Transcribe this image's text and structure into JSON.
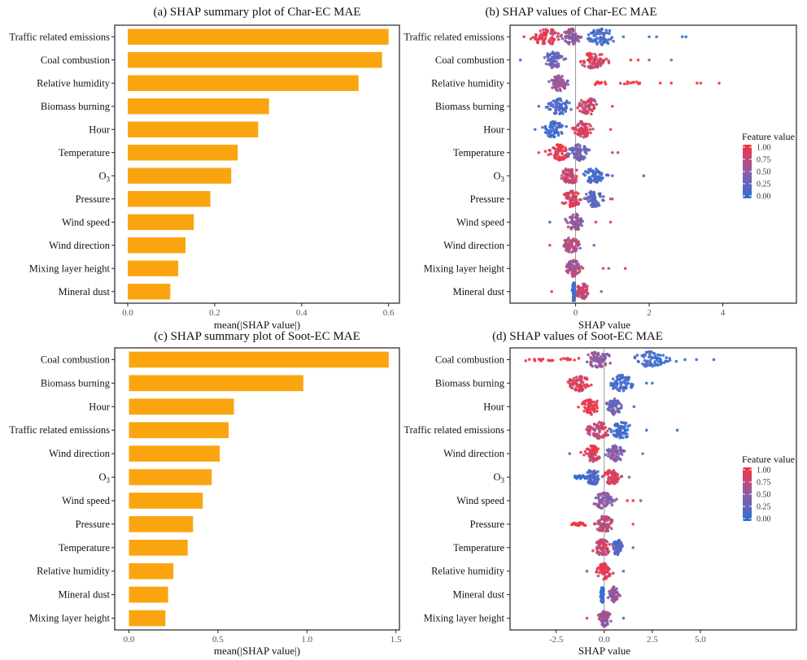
{
  "chart_data": [
    {
      "id": "a",
      "type": "bar",
      "orientation": "horizontal",
      "title": "(a) SHAP summary plot of Char-EC MAE",
      "xlabel": "mean(|SHAP value|)",
      "ylabel": "",
      "xlim": [
        -0.03,
        0.625
      ],
      "xticks": [
        0.0,
        0.2,
        0.4,
        0.6
      ],
      "xtick_labels": [
        "0.0",
        "0.2",
        "0.4",
        "0.6"
      ],
      "categories": [
        "Traffic related emissions",
        "Coal combustion",
        "Relative humidity",
        "Biomass burning",
        "Hour",
        "Temperature",
        "O3",
        "Pressure",
        "Wind speed",
        "Wind direction",
        "Mixing layer height",
        "Mineral dust"
      ],
      "values": [
        0.6,
        0.585,
        0.531,
        0.325,
        0.3,
        0.253,
        0.238,
        0.19,
        0.152,
        0.133,
        0.116,
        0.098
      ],
      "bar_color": "#FAA510",
      "grid": false
    },
    {
      "id": "b",
      "type": "scatter",
      "subtype": "beeswarm",
      "title": "(b) SHAP values of Char-EC MAE",
      "xlabel": "SHAP value",
      "xlim": [
        -1.78,
        6.0
      ],
      "xticks": [
        0,
        2,
        4
      ],
      "xtick_labels": [
        "0",
        "2",
        "4"
      ],
      "categories": [
        "Traffic related emissions",
        "Coal combustion",
        "Relative humidity",
        "Biomass burning",
        "Hour",
        "Temperature",
        "O3",
        "Pressure",
        "Wind speed",
        "Wind direction",
        "Mixing layer height",
        "Mineral dust"
      ],
      "distributions": [
        {
          "min": -1.4,
          "max": 3.0,
          "clusters": [
            {
              "center": -0.8,
              "spread": 0.5,
              "fv": 0.9
            },
            {
              "center": -0.1,
              "spread": 0.3,
              "fv": 0.5
            },
            {
              "center": 0.7,
              "spread": 0.45,
              "fv": 0.05
            }
          ],
          "outliers": [
            {
              "x": 2.0,
              "fv": 0.0
            },
            {
              "x": 2.2,
              "fv": 0.0
            },
            {
              "x": 2.9,
              "fv": 0.0
            },
            {
              "x": 3.0,
              "fv": 0.0
            },
            {
              "x": 1.3,
              "fv": 0.2
            },
            {
              "x": -1.4,
              "fv": 1.0
            }
          ]
        },
        {
          "min": -1.5,
          "max": 2.6,
          "clusters": [
            {
              "center": -0.6,
              "spread": 0.35,
              "fv": 0.3
            },
            {
              "center": 0.45,
              "spread": 0.45,
              "fv": 0.85
            }
          ],
          "outliers": [
            {
              "x": -1.5,
              "fv": 0.0
            },
            {
              "x": 1.5,
              "fv": 1.0
            },
            {
              "x": 1.7,
              "fv": 1.0
            },
            {
              "x": 2.0,
              "fv": 0.7
            },
            {
              "x": 2.6,
              "fv": 0.6
            }
          ]
        },
        {
          "min": -0.8,
          "max": 3.9,
          "clusters": [
            {
              "center": -0.45,
              "spread": 0.3,
              "fv": 0.55
            }
          ],
          "tail": {
            "from": 0.4,
            "to": 1.8,
            "fv": 1.0
          },
          "outliers": [
            {
              "x": 2.3,
              "fv": 1.0
            },
            {
              "x": 2.6,
              "fv": 1.0
            },
            {
              "x": 3.3,
              "fv": 1.0
            },
            {
              "x": 3.4,
              "fv": 1.0
            },
            {
              "x": 3.9,
              "fv": 1.0
            }
          ]
        },
        {
          "min": -1.1,
          "max": 1.0,
          "clusters": [
            {
              "center": -0.45,
              "spread": 0.35,
              "fv": 0.15
            },
            {
              "center": 0.35,
              "spread": 0.35,
              "fv": 0.8
            }
          ],
          "outliers": [
            {
              "x": -1.0,
              "fv": 0.0
            },
            {
              "x": 1.0,
              "fv": 1.0
            }
          ]
        },
        {
          "min": -1.1,
          "max": 1.0,
          "clusters": [
            {
              "center": -0.6,
              "spread": 0.35,
              "fv": 0.05
            },
            {
              "center": 0.2,
              "spread": 0.3,
              "fv": 0.85
            }
          ],
          "outliers": [
            {
              "x": -1.1,
              "fv": 0.0
            },
            {
              "x": 0.95,
              "fv": 1.0
            }
          ]
        },
        {
          "min": -1.0,
          "max": 1.2,
          "clusters": [
            {
              "center": -0.45,
              "spread": 0.3,
              "fv": 0.95
            },
            {
              "center": 0.1,
              "spread": 0.3,
              "fv": 0.35
            }
          ],
          "outliers": [
            {
              "x": -1.0,
              "fv": 1.0
            },
            {
              "x": 1.0,
              "fv": 0.8
            },
            {
              "x": 1.15,
              "fv": 0.6
            }
          ]
        },
        {
          "min": -0.6,
          "max": 1.9,
          "clusters": [
            {
              "center": -0.15,
              "spread": 0.3,
              "fv": 0.8
            },
            {
              "center": 0.5,
              "spread": 0.35,
              "fv": 0.1
            }
          ],
          "outliers": [
            {
              "x": 1.0,
              "fv": 0.0
            },
            {
              "x": 1.85,
              "fv": 0.0
            }
          ]
        },
        {
          "min": -0.6,
          "max": 1.0,
          "clusters": [
            {
              "center": -0.1,
              "spread": 0.3,
              "fv": 0.85
            },
            {
              "center": 0.5,
              "spread": 0.3,
              "fv": 0.2
            }
          ],
          "outliers": [
            {
              "x": 0.95,
              "fv": 1.0
            },
            {
              "x": 1.0,
              "fv": 0.7
            }
          ]
        },
        {
          "min": -0.7,
          "max": 1.0,
          "clusters": [
            {
              "center": 0.0,
              "spread": 0.3,
              "fv": 0.55
            }
          ],
          "outliers": [
            {
              "x": -0.7,
              "fv": 0.0
            },
            {
              "x": 0.55,
              "fv": 1.0
            },
            {
              "x": 0.95,
              "fv": 0.8
            }
          ]
        },
        {
          "min": -0.75,
          "max": 0.6,
          "clusters": [
            {
              "center": -0.1,
              "spread": 0.3,
              "fv": 0.7
            }
          ],
          "outliers": [
            {
              "x": -0.7,
              "fv": 1.0
            },
            {
              "x": 0.5,
              "fv": 0.3
            }
          ]
        },
        {
          "min": -0.5,
          "max": 1.4,
          "clusters": [
            {
              "center": -0.05,
              "spread": 0.25,
              "fv": 0.65
            }
          ],
          "outliers": [
            {
              "x": 0.75,
              "fv": 1.0
            },
            {
              "x": 0.9,
              "fv": 0.6
            },
            {
              "x": 1.35,
              "fv": 1.0
            }
          ]
        },
        {
          "min": -0.7,
          "max": 0.7,
          "clusters": [
            {
              "center": -0.05,
              "spread": 0.05,
              "fv": 0.0
            },
            {
              "center": 0.2,
              "spread": 0.2,
              "fv": 0.7
            }
          ],
          "outliers": [
            {
              "x": -0.65,
              "fv": 1.0
            },
            {
              "x": 0.7,
              "fv": 0.6
            }
          ]
        }
      ],
      "legend": {
        "title": "Feature value",
        "ticks": [
          "1.00",
          "0.75",
          "0.50",
          "0.25",
          "0.00"
        ],
        "low_color": "#2F6FD4",
        "high_color": "#F5333F",
        "placement": "right"
      },
      "zero_line": true
    },
    {
      "id": "c",
      "type": "bar",
      "orientation": "horizontal",
      "title": "(c) SHAP summary plot of Soot-EC MAE",
      "xlabel": "mean(|SHAP value|)",
      "xlim": [
        -0.08,
        1.52
      ],
      "xticks": [
        0.0,
        0.5,
        1.0,
        1.5
      ],
      "xtick_labels": [
        "0.0",
        "0.5",
        "1.0",
        "1.5"
      ],
      "categories": [
        "Coal combustion",
        "Biomass burning",
        "Hour",
        "Traffic related emissions",
        "Wind direction",
        "O3",
        "Wind speed",
        "Pressure",
        "Temperature",
        "Relative humidity",
        "Mineral dust",
        "Mixing layer height"
      ],
      "values": [
        1.46,
        0.98,
        0.59,
        0.56,
        0.51,
        0.465,
        0.415,
        0.36,
        0.33,
        0.25,
        0.22,
        0.205
      ],
      "bar_color": "#FAA510",
      "grid": false
    },
    {
      "id": "d",
      "type": "scatter",
      "subtype": "beeswarm",
      "title": "(d) SHAP values of Soot-EC MAE",
      "xlabel": "SHAP value",
      "xlim": [
        -4.9,
        10.0
      ],
      "xticks": [
        -2.5,
        0.0,
        2.5,
        5.0
      ],
      "xtick_labels": [
        "-2.5",
        "0.0",
        "2.5",
        "5.0"
      ],
      "categories": [
        "Coal combustion",
        "Biomass burning",
        "Hour",
        "Traffic related emissions",
        "Wind direction",
        "O3",
        "Wind speed",
        "Pressure",
        "Temperature",
        "Relative humidity",
        "Mineral dust",
        "Mixing layer height"
      ],
      "distributions": [
        {
          "min": -4.3,
          "max": 5.7,
          "clusters": [
            {
              "center": -0.3,
              "spread": 0.8,
              "fv": 0.5
            },
            {
              "center": 2.5,
              "spread": 1.2,
              "fv": 0.05
            }
          ],
          "tail": {
            "from": -4.2,
            "to": -1.3,
            "fv": 1.0
          },
          "outliers": [
            {
              "x": 4.2,
              "fv": 0.0
            },
            {
              "x": 4.8,
              "fv": 0.0
            },
            {
              "x": 5.7,
              "fv": 0.0
            }
          ]
        },
        {
          "min": -2.0,
          "max": 2.5,
          "clusters": [
            {
              "center": -1.3,
              "spread": 0.6,
              "fv": 0.85
            },
            {
              "center": 0.9,
              "spread": 0.7,
              "fv": 0.05
            }
          ],
          "outliers": [
            {
              "x": 2.2,
              "fv": 0.0
            },
            {
              "x": 2.5,
              "fv": 0.0
            }
          ]
        },
        {
          "min": -1.9,
          "max": 1.6,
          "clusters": [
            {
              "center": -0.7,
              "spread": 0.6,
              "fv": 1.0
            },
            {
              "center": 0.5,
              "spread": 0.5,
              "fv": 0.35
            }
          ],
          "outliers": [
            {
              "x": 1.55,
              "fv": 0.0
            }
          ]
        },
        {
          "min": -1.6,
          "max": 3.8,
          "clusters": [
            {
              "center": -0.3,
              "spread": 0.7,
              "fv": 0.75
            },
            {
              "center": 0.9,
              "spread": 0.7,
              "fv": 0.05
            }
          ],
          "outliers": [
            {
              "x": 2.2,
              "fv": 0.0
            },
            {
              "x": 3.8,
              "fv": 0.0
            }
          ]
        },
        {
          "min": -1.8,
          "max": 2.1,
          "clusters": [
            {
              "center": -0.6,
              "spread": 0.5,
              "fv": 0.9
            },
            {
              "center": 0.6,
              "spread": 0.5,
              "fv": 0.45
            }
          ],
          "outliers": [
            {
              "x": -1.8,
              "fv": 0.0
            },
            {
              "x": 2.0,
              "fv": 0.6
            }
          ]
        },
        {
          "min": -1.6,
          "max": 1.4,
          "clusters": [
            {
              "center": -0.6,
              "spread": 0.45,
              "fv": 0.15
            },
            {
              "center": 0.4,
              "spread": 0.5,
              "fv": 0.85
            }
          ],
          "tail": {
            "from": -1.6,
            "to": -0.9,
            "fv": 0.0
          },
          "outliers": [
            {
              "x": 1.3,
              "fv": 0.6
            }
          ]
        },
        {
          "min": -1.1,
          "max": 1.9,
          "clusters": [
            {
              "center": 0.0,
              "spread": 0.6,
              "fv": 0.5
            }
          ],
          "outliers": [
            {
              "x": 1.2,
              "fv": 1.0
            },
            {
              "x": 1.5,
              "fv": 1.0
            },
            {
              "x": 1.9,
              "fv": 0.6
            }
          ]
        },
        {
          "min": -1.8,
          "max": 1.5,
          "clusters": [
            {
              "center": 0.0,
              "spread": 0.55,
              "fv": 0.7
            }
          ],
          "tail": {
            "from": -1.8,
            "to": -0.9,
            "fv": 1.0
          },
          "outliers": [
            {
              "x": 1.5,
              "fv": 1.0
            }
          ]
        },
        {
          "min": -0.9,
          "max": 1.6,
          "clusters": [
            {
              "center": -0.1,
              "spread": 0.5,
              "fv": 0.75
            },
            {
              "center": 0.7,
              "spread": 0.3,
              "fv": 0.2
            }
          ],
          "outliers": [
            {
              "x": 1.5,
              "fv": 0.5
            }
          ]
        },
        {
          "min": -0.9,
          "max": 1.0,
          "clusters": [
            {
              "center": 0.0,
              "spread": 0.45,
              "fv": 0.85
            }
          ],
          "outliers": [
            {
              "x": -0.9,
              "fv": 0.4
            },
            {
              "x": 1.0,
              "fv": 0.4
            }
          ]
        },
        {
          "min": -0.4,
          "max": 1.0,
          "clusters": [
            {
              "center": -0.1,
              "spread": 0.1,
              "fv": 0.0
            },
            {
              "center": 0.5,
              "spread": 0.3,
              "fv": 0.5
            }
          ],
          "outliers": []
        },
        {
          "min": -1.0,
          "max": 1.0,
          "clusters": [
            {
              "center": 0.0,
              "spread": 0.35,
              "fv": 0.6
            }
          ],
          "outliers": [
            {
              "x": -0.9,
              "fv": 1.0
            },
            {
              "x": 1.0,
              "fv": 0.0
            }
          ]
        }
      ],
      "legend": {
        "title": "Feature value",
        "ticks": [
          "1.00",
          "0.75",
          "0.50",
          "0.25",
          "0.00"
        ],
        "low_color": "#2F6FD4",
        "high_color": "#F5333F",
        "placement": "right"
      },
      "zero_line": true
    }
  ]
}
